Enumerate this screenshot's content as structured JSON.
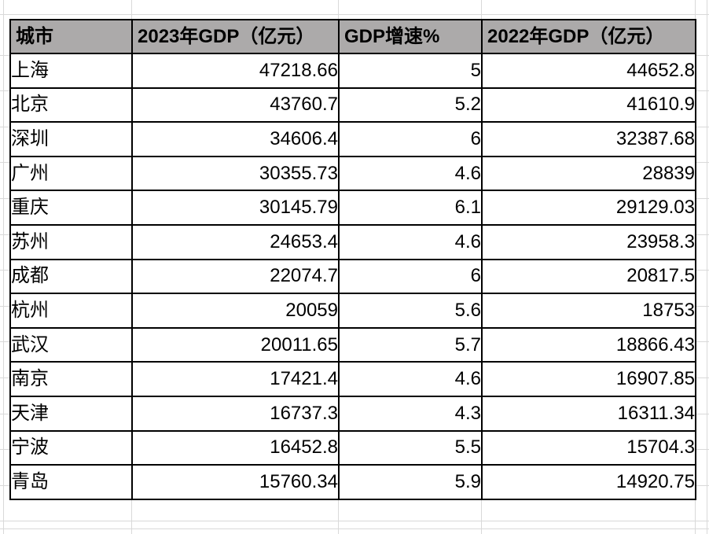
{
  "table": {
    "columns": [
      {
        "label": "城市"
      },
      {
        "label": "2023年GDP（亿元）"
      },
      {
        "label": "GDP增速%"
      },
      {
        "label": "2022年GDP（亿元）"
      }
    ],
    "rows": [
      [
        "上海",
        "47218.66",
        "5",
        "44652.8"
      ],
      [
        "北京",
        "43760.7",
        "5.2",
        "41610.9"
      ],
      [
        "深圳",
        "34606.4",
        "6",
        "32387.68"
      ],
      [
        "广州",
        "30355.73",
        "4.6",
        "28839"
      ],
      [
        "重庆",
        "30145.79",
        "6.1",
        "29129.03"
      ],
      [
        "苏州",
        "24653.4",
        "4.6",
        "23958.3"
      ],
      [
        "成都",
        "22074.7",
        "6",
        "20817.5"
      ],
      [
        "杭州",
        "20059",
        "5.6",
        "18753"
      ],
      [
        "武汉",
        "20011.65",
        "5.7",
        "18866.43"
      ],
      [
        "南京",
        "17421.4",
        "4.6",
        "16907.85"
      ],
      [
        "天津",
        "16737.3",
        "4.3",
        "16311.34"
      ],
      [
        "宁波",
        "16452.8",
        "5.5",
        "15704.3"
      ],
      [
        "青岛",
        "15760.34",
        "5.9",
        "14920.75"
      ]
    ],
    "colors": {
      "header_bg": "#acaaaa",
      "cell_bg": "#ffffff",
      "border": "#000000",
      "faint_grid": "#d9d9d9",
      "text": "#000000"
    }
  }
}
